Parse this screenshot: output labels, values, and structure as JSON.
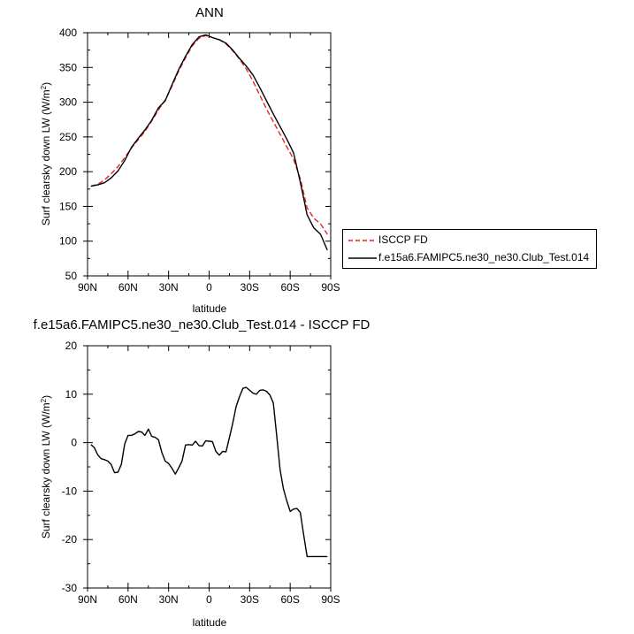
{
  "chart_data": [
    {
      "type": "line",
      "title": "ANN",
      "xlabel": "latitude",
      "ylabel_parts": [
        "Surf clearsky down LW (W/m",
        "2",
        ")"
      ],
      "xlim": [
        90,
        -90
      ],
      "ylim": [
        50,
        400
      ],
      "xticks": [
        90,
        60,
        30,
        0,
        -30,
        -60,
        -90
      ],
      "xtick_labels": [
        "90N",
        "60N",
        "30N",
        "0",
        "30S",
        "60S",
        "90S"
      ],
      "yticks": [
        50,
        100,
        150,
        200,
        250,
        300,
        350,
        400
      ],
      "ytick_labels": [
        "50",
        "100",
        "150",
        "200",
        "250",
        "300",
        "350",
        "400"
      ],
      "legend_position": "right",
      "series": [
        {
          "name": "ISCCP FD",
          "color": "#e8241f",
          "dash": "dashed",
          "x": [
            87.5,
            82.5,
            77.5,
            72.5,
            67.5,
            62.5,
            57.5,
            52.5,
            47.5,
            42.5,
            37.5,
            32.5,
            27.5,
            22.5,
            17.5,
            12.5,
            7.5,
            2.5,
            -2.5,
            -7.5,
            -12.5,
            -17.5,
            -22.5,
            -27.5,
            -32.5,
            -37.5,
            -42.5,
            -47.5,
            -52.5,
            -57.5,
            -62.5,
            -67.5,
            -72.5,
            -77.5,
            -82.5,
            -87.5
          ],
          "y": [
            179,
            182,
            188,
            197,
            207,
            220,
            234,
            246,
            258,
            273,
            289,
            303,
            323,
            345,
            364,
            381,
            392,
            396,
            393,
            390,
            384,
            374,
            362,
            348,
            330,
            310,
            290,
            272,
            254,
            236,
            218,
            190,
            148,
            133,
            125,
            110
          ]
        },
        {
          "name": "f.e15a6.FAMIPC5.ne30_ne30.Club_Test.014",
          "color": "#000000",
          "dash": "solid",
          "x": [
            87.5,
            82.5,
            77.5,
            72.5,
            67.5,
            62.5,
            57.5,
            52.5,
            47.5,
            42.5,
            37.5,
            32.5,
            27.5,
            22.5,
            17.5,
            12.5,
            7.5,
            2.5,
            -2.5,
            -7.5,
            -12.5,
            -17.5,
            -22.5,
            -27.5,
            -32.5,
            -37.5,
            -42.5,
            -47.5,
            -52.5,
            -57.5,
            -62.5,
            -67.5,
            -72.5,
            -77.5,
            -82.5,
            -87.5
          ],
          "y": [
            179,
            181,
            184,
            191,
            201,
            216,
            235,
            248,
            260,
            274,
            292,
            302,
            325,
            347,
            366,
            383,
            394,
            397,
            393,
            390,
            385,
            375,
            363,
            352,
            339,
            321,
            302,
            283,
            265,
            247,
            227,
            185,
            138,
            119,
            110,
            87
          ]
        }
      ]
    },
    {
      "type": "line",
      "title": "f.e15a6.FAMIPC5.ne30_ne30.Club_Test.014 - ISCCP FD",
      "xlabel": "latitude",
      "ylabel_parts": [
        "Surf clearsky down LW (W/m",
        "2",
        ")"
      ],
      "xlim": [
        90,
        -90
      ],
      "ylim": [
        -30,
        20
      ],
      "xticks": [
        90,
        60,
        30,
        0,
        -30,
        -60,
        -90
      ],
      "xtick_labels": [
        "90N",
        "60N",
        "30N",
        "0",
        "30S",
        "60S",
        "90S"
      ],
      "yticks": [
        -30,
        -20,
        -10,
        0,
        10,
        20
      ],
      "ytick_labels": [
        "-30",
        "-20",
        "-10",
        "0",
        "10",
        "20"
      ],
      "series": [
        {
          "color": "#000000",
          "dash": "solid",
          "x": [
            87.5,
            85,
            82.5,
            80,
            77.5,
            75,
            72.5,
            70,
            67.5,
            65,
            62.5,
            60,
            57.5,
            55,
            52.5,
            50,
            47.5,
            45,
            42.5,
            40,
            37.5,
            35,
            32.5,
            30,
            27.5,
            25,
            22.5,
            20,
            17.5,
            15,
            12.5,
            10,
            7.5,
            5,
            2.5,
            0,
            -2.5,
            -5,
            -7.5,
            -10,
            -12.5,
            -15,
            -17.5,
            -20,
            -22.5,
            -25,
            -27.5,
            -30,
            -32.5,
            -35,
            -37.5,
            -40,
            -42.5,
            -45,
            -47.5,
            -50,
            -52.5,
            -55,
            -57.5,
            -60,
            -62.5,
            -65,
            -67.5,
            -70,
            -72.5,
            -75,
            -77.5,
            -80,
            -82.5,
            -85,
            -87.5
          ],
          "y": [
            -0.4,
            -1.0,
            -2.5,
            -3.3,
            -3.5,
            -3.8,
            -4.5,
            -6.2,
            -6.1,
            -4.5,
            -0.3,
            1.5,
            1.5,
            1.8,
            2.3,
            2.2,
            1.5,
            2.8,
            1.3,
            1.1,
            0.6,
            -2.0,
            -3.8,
            -4.3,
            -5.3,
            -6.5,
            -5.2,
            -3.8,
            -0.5,
            -0.4,
            -0.5,
            0.3,
            -0.6,
            -0.7,
            0.4,
            0.3,
            0.2,
            -1.8,
            -2.6,
            -1.8,
            -1.9,
            1.0,
            4.0,
            7.5,
            9.5,
            11.2,
            11.4,
            10.8,
            10.2,
            10.0,
            10.8,
            10.9,
            10.6,
            9.8,
            8.2,
            1.5,
            -5.5,
            -9.5,
            -12.0,
            -14.2,
            -13.7,
            -13.6,
            -14.4,
            -19.0,
            -23.5,
            -23.5,
            -23.5,
            -23.5,
            -23.5,
            -23.5,
            -23.5
          ]
        }
      ]
    }
  ]
}
